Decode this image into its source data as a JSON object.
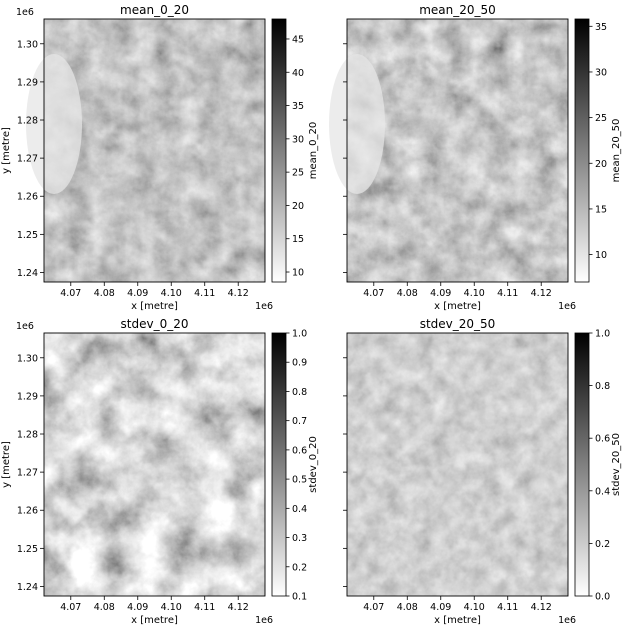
{
  "chart_data": [
    {
      "type": "heatmap",
      "title": "mean_0_20",
      "xlabel": "x [metre]",
      "ylabel": "y [metre]",
      "xlim": [
        4.062,
        4.128
      ],
      "ylim": [
        1.2375,
        1.3065
      ],
      "xticks": [
        "4.07",
        "4.08",
        "4.09",
        "4.10",
        "4.11",
        "4.12"
      ],
      "yticks": [
        "1.24",
        "1.25",
        "1.26",
        "1.27",
        "1.28",
        "1.29",
        "1.30"
      ],
      "x_offset": "1e6",
      "y_offset": "1e6",
      "colorbar": {
        "label": "mean_0_20",
        "range": [
          8.5,
          48
        ],
        "ticks": [
          "10",
          "15",
          "20",
          "25",
          "30",
          "35",
          "40",
          "45"
        ],
        "colormap": "gray_r"
      }
    },
    {
      "type": "heatmap",
      "title": "mean_20_50",
      "xlabel": "x [metre]",
      "ylabel": "",
      "xlim": [
        4.062,
        4.128
      ],
      "ylim": [
        1.2375,
        1.3065
      ],
      "xticks": [
        "4.07",
        "4.08",
        "4.09",
        "4.10",
        "4.11",
        "4.12"
      ],
      "yticks": [],
      "x_offset": "1e6",
      "y_offset": "",
      "colorbar": {
        "label": "mean_20_50",
        "range": [
          7,
          35.8
        ],
        "ticks": [
          "10",
          "15",
          "20",
          "25",
          "30",
          "35"
        ],
        "colormap": "gray_r"
      }
    },
    {
      "type": "heatmap",
      "title": "stdev_0_20",
      "xlabel": "x [metre]",
      "ylabel": "y [metre]",
      "xlim": [
        4.062,
        4.128
      ],
      "ylim": [
        1.2375,
        1.3065
      ],
      "xticks": [
        "4.07",
        "4.08",
        "4.09",
        "4.10",
        "4.11",
        "4.12"
      ],
      "yticks": [
        "1.24",
        "1.25",
        "1.26",
        "1.27",
        "1.28",
        "1.29",
        "1.30"
      ],
      "x_offset": "1e6",
      "y_offset": "1e6",
      "colorbar": {
        "label": "stdev_0_20",
        "range": [
          0.1,
          1.0
        ],
        "ticks": [
          "0.2",
          "0.3",
          "0.4",
          "0.5",
          "0.6",
          "0.7",
          "0.8",
          "0.9",
          "1.0"
        ],
        "extra_ticks": [
          "0.1"
        ],
        "colormap": "gray_r"
      }
    },
    {
      "type": "heatmap",
      "title": "stdev_20_50",
      "xlabel": "x [metre]",
      "ylabel": "",
      "xlim": [
        4.062,
        4.128
      ],
      "ylim": [
        1.2375,
        1.3065
      ],
      "xticks": [
        "4.07",
        "4.08",
        "4.09",
        "4.10",
        "4.11",
        "4.12"
      ],
      "yticks": [],
      "x_offset": "1e6",
      "y_offset": "",
      "colorbar": {
        "label": "stdev_20_50",
        "range": [
          0.0,
          1.0
        ],
        "ticks": [
          "0.0",
          "0.2",
          "0.4",
          "0.6",
          "0.8",
          "1.0"
        ],
        "colormap": "gray_r"
      }
    }
  ]
}
